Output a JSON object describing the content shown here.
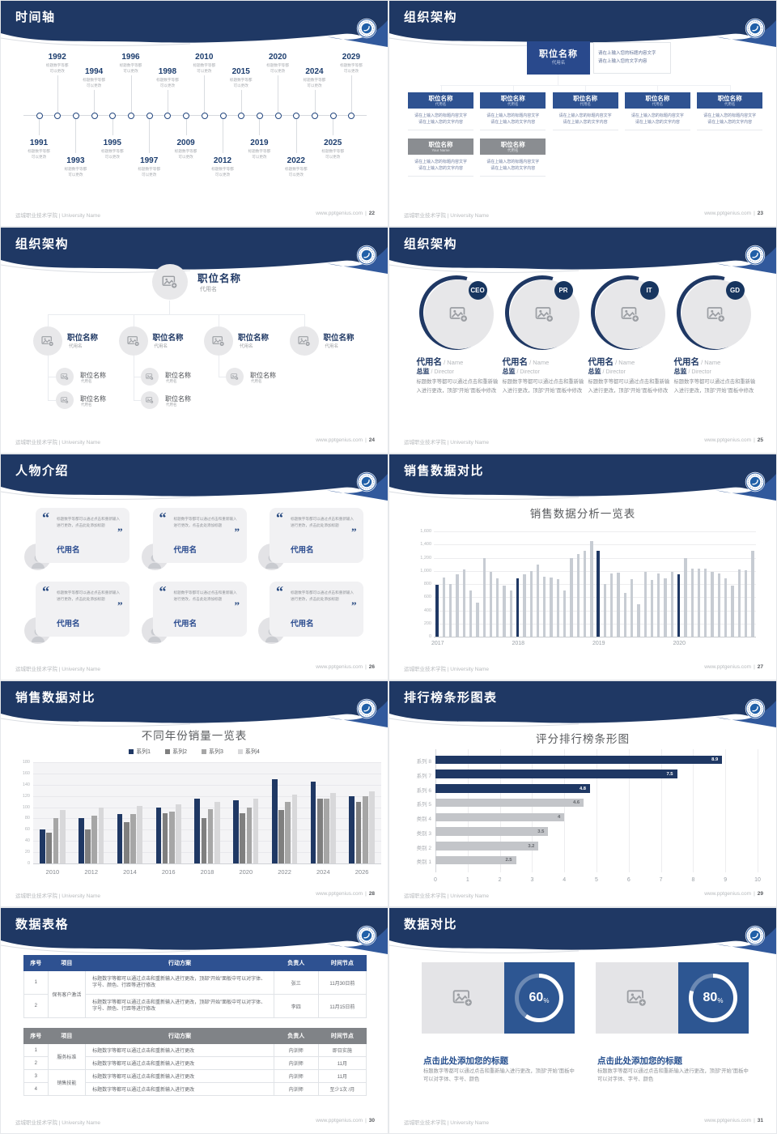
{
  "footer": {
    "left": "运城职业技术学院 | University Name",
    "site": "www.pptgenius.com",
    "divider": "|"
  },
  "colors": {
    "navy": "#1f3864",
    "blue_box": "#2e5191",
    "light_blue_wedge": "#31599c",
    "gray_box": "#8a8d91",
    "bar_gray": "#c7ccd3",
    "panel_navy": "#2d5692",
    "accent_text": "#27508f"
  },
  "slides": [
    {
      "title": "时间轴",
      "page": "22"
    },
    {
      "title": "组织架构",
      "page": "23"
    },
    {
      "title": "组织架构",
      "page": "24"
    },
    {
      "title": "组织架构",
      "page": "25"
    },
    {
      "title": "人物介绍",
      "page": "26"
    },
    {
      "title": "销售数据对比",
      "page": "27"
    },
    {
      "title": "销售数据对比",
      "page": "28"
    },
    {
      "title": "排行榜条形图表",
      "page": "29"
    },
    {
      "title": "数据表格",
      "page": "30"
    },
    {
      "title": "数据对比",
      "page": "31"
    }
  ],
  "timeline": {
    "caption_line1": "标题数字等都",
    "caption_line2": "可以更改",
    "years": [
      "1991",
      "1992",
      "1993",
      "1994",
      "1995",
      "1996",
      "1997",
      "1998",
      "2009",
      "2010",
      "2012",
      "2015",
      "2019",
      "2020",
      "2022",
      "2024",
      "2025",
      "2029"
    ]
  },
  "org1": {
    "root": {
      "title": "职位名称",
      "sub": "代用名"
    },
    "desc_line1": "请在上输入您的标题内容文字",
    "desc_line2": "请在上输入您的文字内容",
    "body_line1": "请在上输入您的标题内容文字",
    "body_line2": "请在上输入您的文字内容",
    "blue_nodes": [
      {
        "title": "职位名称",
        "sub": "代用名"
      },
      {
        "title": "职位名称",
        "sub": "代用名"
      },
      {
        "title": "职位名称",
        "sub": "代用名"
      },
      {
        "title": "职位名称",
        "sub": "代用名"
      },
      {
        "title": "职位名称",
        "sub": "代用名"
      }
    ],
    "gray_nodes": [
      {
        "title": "职位名称",
        "sub": "Your Name"
      },
      {
        "title": "职位名称",
        "sub": "代用名"
      }
    ]
  },
  "org2": {
    "root": {
      "title": "职位名称",
      "sub": "代用名"
    },
    "level2": [
      {
        "title": "职位名称",
        "sub": "代用名"
      },
      {
        "title": "职位名称",
        "sub": "代用名"
      },
      {
        "title": "职位名称",
        "sub": "代用名"
      },
      {
        "title": "职位名称",
        "sub": "代用名"
      }
    ],
    "level3_counts": [
      2,
      2,
      1,
      0
    ],
    "level3_node": {
      "title": "职位名称",
      "sub": "代用名"
    }
  },
  "team": {
    "badges": [
      "CEO",
      "PR",
      "IT",
      "GD"
    ],
    "name": "代用名",
    "name_suffix": " / Name",
    "role": "总监",
    "role_suffix": " / Director",
    "desc": "标题数字等都可以通过点击和重新输入进行更改，顶部“开始”面板中修改"
  },
  "people": {
    "count": 6,
    "quote_open": "“",
    "quote_close": "”",
    "quote": "标题数字等都可以通过点击和重新输入进行更改，点击此处添加标题",
    "name": "代用名"
  },
  "tables": {
    "headers": [
      "序号",
      "项目",
      "行动方案",
      "负责人",
      "时间节点"
    ],
    "table1": {
      "rows": [
        {
          "no": "1",
          "item": "保有客户激活",
          "span": 2,
          "plan": "标题数字等都可以通过点击和重新输入进行更改，顶部“开始”面板中可以对字体、字号、颜色、行距等进行修改",
          "owner": "张三",
          "time": "11月30日前"
        },
        {
          "no": "2",
          "plan": "标题数字等都可以通过点击和重新输入进行更改，顶部“开始”面板中可以对字体、字号、颜色、行距等进行修改",
          "owner": "李四",
          "time": "11月15日前"
        }
      ]
    },
    "table2": {
      "rows": [
        {
          "no": "1",
          "item": "服务标准",
          "span": 2,
          "plan": "标题数字等都可以通过点击和重新输入进行更改",
          "owner": "内训师",
          "time": "即日实施"
        },
        {
          "no": "2",
          "plan": "标题数字等都可以通过点击和重新输入进行更改",
          "owner": "内训师",
          "time": "11月"
        },
        {
          "no": "3",
          "item": "销售技能",
          "span": 2,
          "plan": "标题数字等都可以通过点击和重新输入进行更改",
          "owner": "内训师",
          "time": "11月"
        },
        {
          "no": "4",
          "plan": "标题数字等都可以通过点击和重新输入进行更改",
          "owner": "内训师",
          "time": "至少1次 /月"
        }
      ]
    }
  },
  "compare": {
    "heading": "点击此处添加您的标题",
    "desc": "标题数字等都可以通过点击和重新输入进行更改，顶部“开始”面板中可以对字体、字号、颜色",
    "items": [
      {
        "label": "60",
        "unit": "%",
        "value": 60
      },
      {
        "label": "80",
        "unit": "%",
        "value": 80
      }
    ]
  },
  "chart_data": [
    {
      "id": "monthly_sales",
      "type": "bar",
      "title": "销售数据分析一览表",
      "x_group_labels": [
        "2017",
        "2018",
        "2019",
        "2020"
      ],
      "values": [
        790,
        900,
        800,
        950,
        1020,
        700,
        520,
        1200,
        990,
        890,
        780,
        700,
        890,
        950,
        1000,
        1100,
        910,
        900,
        880,
        700,
        1200,
        1250,
        1300,
        1450,
        1300,
        800,
        960,
        970,
        660,
        870,
        490,
        980,
        860,
        960,
        890,
        980,
        950,
        1200,
        1030,
        1040,
        1030,
        980,
        960,
        890,
        770,
        1020,
        1010,
        1300
      ],
      "highlight_indices": [
        0,
        12,
        24,
        36
      ],
      "ylim": [
        0,
        1600
      ],
      "ytick_step": 200,
      "bar_color": "#c7ccd3",
      "highlight_color": "#1f3864",
      "grid": true
    },
    {
      "id": "yearly_sales_grouped",
      "type": "bar",
      "title": "不同年份销量一览表",
      "categories": [
        "2010",
        "2012",
        "2014",
        "2016",
        "2018",
        "2020",
        "2022",
        "2024",
        "2026"
      ],
      "series": [
        {
          "name": "系列1",
          "color": "#1f3864",
          "values": [
            60,
            80,
            88,
            100,
            115,
            112,
            150,
            145,
            120
          ]
        },
        {
          "name": "系列2",
          "color": "#7f7f7f",
          "values": [
            55,
            60,
            73,
            90,
            80,
            90,
            95,
            115,
            110
          ]
        },
        {
          "name": "系列3",
          "color": "#a6a6a6",
          "values": [
            80,
            85,
            88,
            92,
            97,
            100,
            110,
            115,
            120
          ]
        },
        {
          "name": "系列4",
          "color": "#d8d8da",
          "values": [
            95,
            100,
            103,
            105,
            110,
            115,
            122,
            125,
            128
          ]
        }
      ],
      "ylim": [
        0,
        180
      ],
      "ytick_step": 20,
      "legend_position": "top",
      "grid": true
    },
    {
      "id": "score_ranking",
      "type": "bar-horizontal",
      "title": "评分排行榜条形图",
      "categories": [
        "系列 8",
        "系列 7",
        "系列 6",
        "系列 5",
        "类别 4",
        "类别 3",
        "类别 2",
        "类别 1"
      ],
      "values": [
        8.9,
        7.5,
        4.8,
        4.6,
        4,
        3.5,
        3.2,
        2.5
      ],
      "bar_colors": [
        "#1f3864",
        "#1f3864",
        "#1f3864",
        "#c3c5c9",
        "#c3c5c9",
        "#c3c5c9",
        "#c3c5c9",
        "#c3c5c9"
      ],
      "xlim": [
        0,
        10
      ],
      "xtick_step": 1,
      "grid": true
    },
    {
      "id": "percent_donuts",
      "type": "pie",
      "title": "数据对比",
      "items": [
        {
          "label": "60%",
          "value": 60
        },
        {
          "label": "80%",
          "value": 80
        }
      ]
    }
  ]
}
